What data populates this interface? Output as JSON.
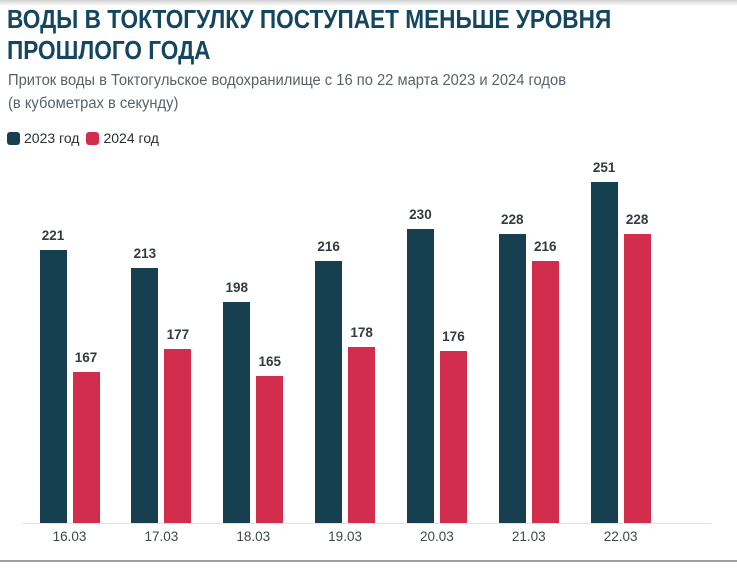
{
  "header": {
    "title_lines": [
      "ВОДЫ В ТОКТОГУЛКУ ПОСТУПАЕТ МЕНЬШЕ УРОВНЯ",
      "ПРОШЛОГО ГОДА"
    ],
    "subtitle_lines": [
      "Приток воды в Токтогульское водохранилище с 16 по 22 марта 2023 и 2024 годов",
      "(в кубометрах в секунду)"
    ]
  },
  "legend": [
    {
      "label": "2023 год",
      "color": "#164050"
    },
    {
      "label": "2024 год",
      "color": "#d22d4c"
    }
  ],
  "colors": {
    "title": "#14465f",
    "subtitle": "#57626b",
    "bar_2023": "#164050",
    "bar_2024": "#d22d4c",
    "value_label": "#333a40",
    "axis_label": "#3c4750",
    "axis_line": "#e4e4e4",
    "bottom_divider": "#9f9f9f"
  },
  "chart_data": {
    "type": "bar",
    "title": "ВОДЫ В ТОКТОГУЛКУ ПОСТУПАЕТ МЕНЬШЕ УРОВНЯ ПРОШЛОГО ГОДА",
    "subtitle": "Приток воды в Токтогульское водохранилище с 16 по 22 марта 2023 и 2024 годов (в кубометрах в секунду)",
    "categories": [
      "16.03",
      "17.03",
      "18.03",
      "19.03",
      "20.03",
      "21.03",
      "22.03"
    ],
    "series": [
      {
        "name": "2023 год",
        "color": "#164050",
        "values": [
          221,
          213,
          198,
          216,
          230,
          228,
          251
        ]
      },
      {
        "name": "2024 год",
        "color": "#d22d4c",
        "values": [
          167,
          177,
          165,
          178,
          176,
          216,
          228
        ]
      }
    ],
    "xlabel": "",
    "ylabel": "",
    "ylim": [
      100,
      260
    ],
    "grid": false,
    "value_labels": true,
    "legend_position": "top-left"
  }
}
